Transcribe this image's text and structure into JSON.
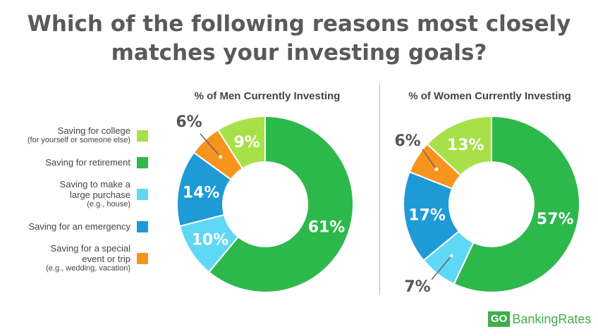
{
  "title": {
    "line1": "Which of the following reasons most closely",
    "line2": "matches your investing goals?"
  },
  "legend": [
    {
      "main": "Saving for college",
      "sub": "(for yourself or someone else)",
      "color": "#a8e04a"
    },
    {
      "main": "Saving for retirement",
      "color": "#2db84c"
    },
    {
      "main": "Saving to make a",
      "main2": "large purchase",
      "sub": "(e.g., house)",
      "color": "#5fd8f5"
    },
    {
      "main": "Saving for an emergency",
      "color": "#1e9ad6"
    },
    {
      "main": "Saving for a special",
      "main2": "event or trip",
      "sub": "(e.g., wedding, vacation)",
      "color": "#f7941d"
    }
  ],
  "chart_data": [
    {
      "type": "pie",
      "title": "% of Men Currently Investing",
      "categories": [
        "Saving for retirement",
        "Saving to make a large purchase",
        "Saving for an emergency",
        "Saving for a special event or trip",
        "Saving for college"
      ],
      "values": [
        61,
        10,
        14,
        6,
        9
      ],
      "labels": [
        "61%",
        "10%",
        "14%",
        "6%",
        "9%"
      ],
      "colors": [
        "#2db84c",
        "#5fd8f5",
        "#1e9ad6",
        "#f7941d",
        "#a8e04a"
      ]
    },
    {
      "type": "pie",
      "title": "% of Women Currently Investing",
      "categories": [
        "Saving for retirement",
        "Saving to make a large purchase",
        "Saving for an emergency",
        "Saving for a special event or trip",
        "Saving for college"
      ],
      "values": [
        57,
        7,
        17,
        6,
        13
      ],
      "labels": [
        "57%",
        "7%",
        "17%",
        "6%",
        "13%"
      ],
      "colors": [
        "#2db84c",
        "#5fd8f5",
        "#1e9ad6",
        "#f7941d",
        "#a8e04a"
      ]
    }
  ],
  "branding": {
    "go": "GO",
    "rest": "BankingRates"
  }
}
